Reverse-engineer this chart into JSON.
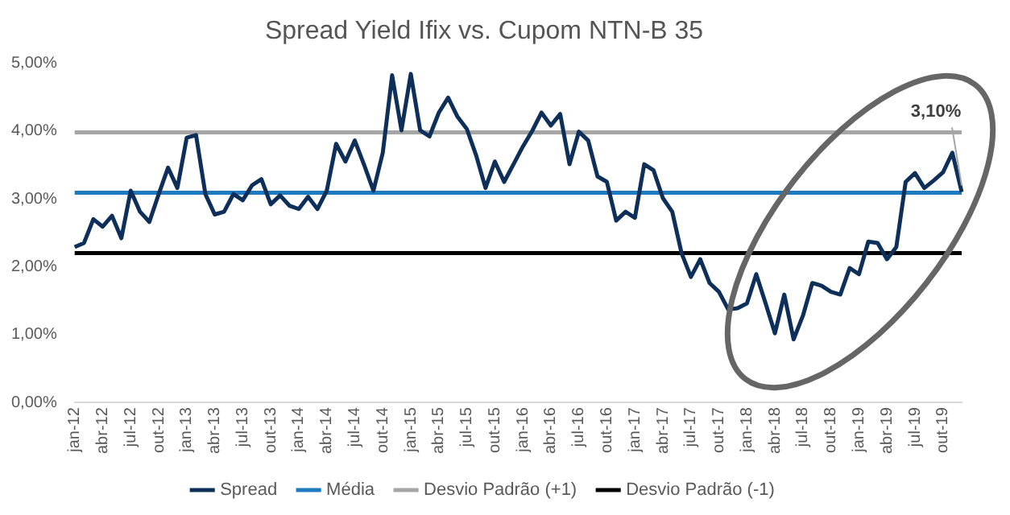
{
  "chart_data": {
    "type": "line",
    "title": "Spread Yield Ifix vs. Cupom NTN-B 35",
    "categories": [
      "jan-12",
      null,
      null,
      "abr-12",
      null,
      null,
      "jul-12",
      null,
      null,
      "out-12",
      null,
      null,
      "jan-13",
      null,
      null,
      "abr-13",
      null,
      null,
      "jul-13",
      null,
      null,
      "out-13",
      null,
      null,
      "jan-14",
      null,
      null,
      "abr-14",
      null,
      null,
      "jul-14",
      null,
      null,
      "out-14",
      null,
      null,
      "jan-15",
      null,
      null,
      "abr-15",
      null,
      null,
      "jul-15",
      null,
      null,
      "out-15",
      null,
      null,
      "jan-16",
      null,
      null,
      "abr-16",
      null,
      null,
      "jul-16",
      null,
      null,
      "out-16",
      null,
      null,
      "jan-17",
      null,
      null,
      "abr-17",
      null,
      null,
      "jul-17",
      null,
      null,
      "out-17",
      null,
      null,
      "jan-18",
      null,
      null,
      "abr-18",
      null,
      null,
      "jul-18",
      null,
      null,
      "out-18",
      null,
      null,
      "jan-19",
      null,
      null,
      "abr-19",
      null,
      null,
      "jul-19",
      null,
      null,
      "out-19",
      null,
      null
    ],
    "series": [
      {
        "name": "Spread",
        "color": "#0d2f5a",
        "values": [
          2.29,
          2.35,
          2.7,
          2.59,
          2.75,
          2.42,
          3.12,
          2.81,
          2.66,
          3.07,
          3.46,
          3.16,
          3.9,
          3.94,
          3.07,
          2.77,
          2.81,
          3.07,
          2.98,
          3.2,
          3.29,
          2.92,
          3.05,
          2.9,
          2.85,
          3.03,
          2.85,
          3.12,
          3.81,
          3.55,
          3.86,
          3.5,
          3.12,
          3.68,
          4.82,
          4.01,
          4.84,
          4.01,
          3.92,
          4.27,
          4.49,
          4.21,
          4.03,
          3.64,
          3.16,
          3.55,
          3.25,
          3.51,
          3.77,
          4.0,
          4.27,
          4.08,
          4.25,
          3.51,
          3.99,
          3.86,
          3.33,
          3.25,
          2.68,
          2.81,
          2.72,
          3.51,
          3.42,
          3.01,
          2.81,
          2.2,
          1.85,
          2.11,
          1.76,
          1.63,
          1.37,
          1.39,
          1.46,
          1.89,
          1.46,
          1.02,
          1.59,
          0.93,
          1.28,
          1.76,
          1.72,
          1.63,
          1.59,
          1.98,
          1.89,
          2.37,
          2.35,
          2.11,
          2.29,
          3.25,
          3.38,
          3.16,
          3.27,
          3.39,
          3.68,
          3.1
        ],
        "value_labels": [
          null,
          null,
          null,
          null,
          null,
          null,
          null,
          null,
          null,
          null,
          null,
          null,
          null,
          null,
          null,
          null,
          null,
          null,
          null,
          null,
          null,
          null,
          null,
          null,
          null,
          null,
          null,
          null,
          null,
          null,
          null,
          null,
          null,
          null,
          null,
          null,
          null,
          null,
          null,
          null,
          null,
          null,
          null,
          null,
          null,
          null,
          null,
          null,
          null,
          null,
          null,
          null,
          null,
          null,
          null,
          null,
          null,
          null,
          null,
          null,
          null,
          null,
          null,
          null,
          null,
          null,
          null,
          null,
          null,
          null,
          null,
          null,
          null,
          null,
          null,
          null,
          null,
          null,
          null,
          null,
          null,
          null,
          null,
          null,
          null,
          null,
          null,
          null,
          null,
          null,
          null,
          null,
          null,
          null,
          null,
          "3,10%"
        ]
      },
      {
        "name": "Média",
        "color": "#1f7bbf",
        "values": [
          3.09,
          3.09,
          3.09,
          3.09,
          3.09,
          3.09,
          3.09,
          3.09,
          3.09,
          3.09,
          3.09,
          3.09,
          3.09,
          3.09,
          3.09,
          3.09,
          3.09,
          3.09,
          3.09,
          3.09,
          3.09,
          3.09,
          3.09,
          3.09,
          3.09,
          3.09,
          3.09,
          3.09,
          3.09,
          3.09,
          3.09,
          3.09,
          3.09,
          3.09,
          3.09,
          3.09,
          3.09,
          3.09,
          3.09,
          3.09,
          3.09,
          3.09,
          3.09,
          3.09,
          3.09,
          3.09,
          3.09,
          3.09,
          3.09,
          3.09,
          3.09,
          3.09,
          3.09,
          3.09,
          3.09,
          3.09,
          3.09,
          3.09,
          3.09,
          3.09,
          3.09,
          3.09,
          3.09,
          3.09,
          3.09,
          3.09,
          3.09,
          3.09,
          3.09,
          3.09,
          3.09,
          3.09,
          3.09,
          3.09,
          3.09,
          3.09,
          3.09,
          3.09,
          3.09,
          3.09,
          3.09,
          3.09,
          3.09,
          3.09,
          3.09,
          3.09,
          3.09,
          3.09,
          3.09,
          3.09,
          3.09,
          3.09,
          3.09,
          3.09,
          3.09,
          3.09
        ]
      },
      {
        "name": "Desvio Padrão (+1)",
        "color": "#a6a6a6",
        "values": [
          3.98,
          3.98,
          3.98,
          3.98,
          3.98,
          3.98,
          3.98,
          3.98,
          3.98,
          3.98,
          3.98,
          3.98,
          3.98,
          3.98,
          3.98,
          3.98,
          3.98,
          3.98,
          3.98,
          3.98,
          3.98,
          3.98,
          3.98,
          3.98,
          3.98,
          3.98,
          3.98,
          3.98,
          3.98,
          3.98,
          3.98,
          3.98,
          3.98,
          3.98,
          3.98,
          3.98,
          3.98,
          3.98,
          3.98,
          3.98,
          3.98,
          3.98,
          3.98,
          3.98,
          3.98,
          3.98,
          3.98,
          3.98,
          3.98,
          3.98,
          3.98,
          3.98,
          3.98,
          3.98,
          3.98,
          3.98,
          3.98,
          3.98,
          3.98,
          3.98,
          3.98,
          3.98,
          3.98,
          3.98,
          3.98,
          3.98,
          3.98,
          3.98,
          3.98,
          3.98,
          3.98,
          3.98,
          3.98,
          3.98,
          3.98,
          3.98,
          3.98,
          3.98,
          3.98,
          3.98,
          3.98,
          3.98,
          3.98,
          3.98,
          3.98,
          3.98,
          3.98,
          3.98,
          3.98,
          3.98,
          3.98,
          3.98,
          3.98,
          3.98,
          3.98,
          3.98
        ]
      },
      {
        "name": "Desvio Padrão (-1)",
        "color": "#000000",
        "values": [
          2.2,
          2.2,
          2.2,
          2.2,
          2.2,
          2.2,
          2.2,
          2.2,
          2.2,
          2.2,
          2.2,
          2.2,
          2.2,
          2.2,
          2.2,
          2.2,
          2.2,
          2.2,
          2.2,
          2.2,
          2.2,
          2.2,
          2.2,
          2.2,
          2.2,
          2.2,
          2.2,
          2.2,
          2.2,
          2.2,
          2.2,
          2.2,
          2.2,
          2.2,
          2.2,
          2.2,
          2.2,
          2.2,
          2.2,
          2.2,
          2.2,
          2.2,
          2.2,
          2.2,
          2.2,
          2.2,
          2.2,
          2.2,
          2.2,
          2.2,
          2.2,
          2.2,
          2.2,
          2.2,
          2.2,
          2.2,
          2.2,
          2.2,
          2.2,
          2.2,
          2.2,
          2.2,
          2.2,
          2.2,
          2.2,
          2.2,
          2.2,
          2.2,
          2.2,
          2.2,
          2.2,
          2.2,
          2.2,
          2.2,
          2.2,
          2.2,
          2.2,
          2.2,
          2.2,
          2.2,
          2.2,
          2.2,
          2.2,
          2.2,
          2.2,
          2.2,
          2.2,
          2.2,
          2.2,
          2.2,
          2.2,
          2.2,
          2.2,
          2.2,
          2.2,
          2.2
        ]
      }
    ],
    "ylim": [
      0,
      5
    ],
    "yticks": [
      {
        "value": 0,
        "label": "0,00%"
      },
      {
        "value": 1,
        "label": "1,00%"
      },
      {
        "value": 2,
        "label": "2,00%"
      },
      {
        "value": 3,
        "label": "3,00%"
      },
      {
        "value": 4,
        "label": "4,00%"
      },
      {
        "value": 5,
        "label": "5,00%"
      }
    ],
    "grid": false,
    "legend": "bottom",
    "marker": "none",
    "line_style": "solid"
  }
}
